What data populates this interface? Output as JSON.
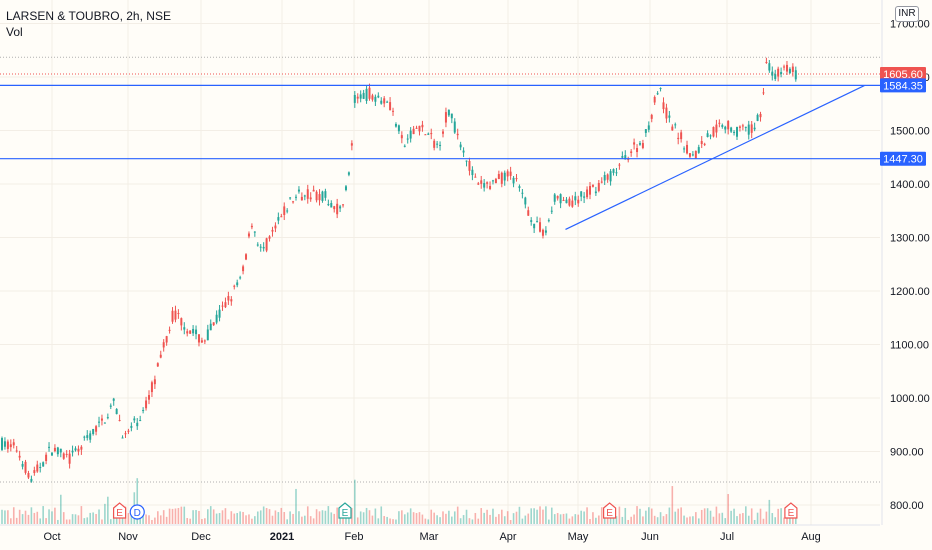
{
  "header": {
    "symbol_line": "LARSEN & TOUBRO, 2h, NSE",
    "indicator": "Vol"
  },
  "currency_badge": "INR",
  "colors": {
    "up": "#26a69a",
    "down": "#ef5350",
    "level_line": "#2962ff",
    "price_tag_red": "#ef5350",
    "price_tag_blue": "#2962ff",
    "background": "#fffdf8",
    "grid": "#f3eee6"
  },
  "chart_data": {
    "type": "candlestick",
    "y_axis": {
      "ticks": [
        800,
        900,
        1000,
        1100,
        1200,
        1300,
        1400,
        1500,
        1600,
        1700
      ],
      "tick_labels": [
        "800.00",
        "900.00",
        "1000.00",
        "1100.00",
        "1200.00",
        "1300.00",
        "1400.00",
        "1500.00",
        "1600.00",
        "1700.00"
      ],
      "ylim": [
        780,
        1725
      ]
    },
    "x_axis": {
      "tick_labels": [
        "Oct",
        "Nov",
        "Dec",
        "2021",
        "Feb",
        "Mar",
        "Apr",
        "May",
        "Jun",
        "Jul",
        "Aug"
      ]
    },
    "grid": true,
    "price_path": [
      {
        "t": 0,
        "p": 915
      },
      {
        "t": 1.5,
        "p": 905
      },
      {
        "t": 3,
        "p": 848
      },
      {
        "t": 5,
        "p": 905
      },
      {
        "t": 7,
        "p": 885
      },
      {
        "t": 8.5,
        "p": 920
      },
      {
        "t": 10,
        "p": 950
      },
      {
        "t": 11.5,
        "p": 990
      },
      {
        "t": 12.5,
        "p": 925
      },
      {
        "t": 14.5,
        "p": 975
      },
      {
        "t": 16,
        "p": 1060
      },
      {
        "t": 17.5,
        "p": 1160
      },
      {
        "t": 19,
        "p": 1130
      },
      {
        "t": 20.5,
        "p": 1105
      },
      {
        "t": 22.5,
        "p": 1165
      },
      {
        "t": 24.5,
        "p": 1225
      },
      {
        "t": 25.5,
        "p": 1330
      },
      {
        "t": 26.5,
        "p": 1270
      },
      {
        "t": 28,
        "p": 1320
      },
      {
        "t": 29.5,
        "p": 1370
      },
      {
        "t": 31,
        "p": 1385
      },
      {
        "t": 33,
        "p": 1375
      },
      {
        "t": 34.5,
        "p": 1350
      },
      {
        "t": 35.5,
        "p": 1420
      },
      {
        "t": 36,
        "p": 1555
      },
      {
        "t": 37.5,
        "p": 1570
      },
      {
        "t": 39.5,
        "p": 1555
      },
      {
        "t": 41,
        "p": 1470
      },
      {
        "t": 42.5,
        "p": 1510
      },
      {
        "t": 44.5,
        "p": 1470
      },
      {
        "t": 45.5,
        "p": 1540
      },
      {
        "t": 47,
        "p": 1470
      },
      {
        "t": 48.5,
        "p": 1395
      },
      {
        "t": 50,
        "p": 1400
      },
      {
        "t": 52,
        "p": 1420
      },
      {
        "t": 53,
        "p": 1380
      },
      {
        "t": 54.5,
        "p": 1320
      },
      {
        "t": 55.5,
        "p": 1312
      },
      {
        "t": 56.5,
        "p": 1380
      },
      {
        "t": 58,
        "p": 1360
      },
      {
        "t": 59.5,
        "p": 1380
      },
      {
        "t": 61,
        "p": 1400
      },
      {
        "t": 62.5,
        "p": 1420
      },
      {
        "t": 64,
        "p": 1460
      },
      {
        "t": 65.5,
        "p": 1480
      },
      {
        "t": 67,
        "p": 1580
      },
      {
        "t": 68,
        "p": 1520
      },
      {
        "t": 69.5,
        "p": 1480
      },
      {
        "t": 70.5,
        "p": 1450
      },
      {
        "t": 72,
        "p": 1490
      },
      {
        "t": 73.5,
        "p": 1515
      },
      {
        "t": 75,
        "p": 1500
      },
      {
        "t": 76.5,
        "p": 1500
      },
      {
        "t": 77.5,
        "p": 1540
      },
      {
        "t": 78,
        "p": 1625
      },
      {
        "t": 79,
        "p": 1600
      },
      {
        "t": 80,
        "p": 1620
      },
      {
        "t": 81,
        "p": 1605
      }
    ],
    "horizontal_levels": [
      1584.35,
      1447.3
    ],
    "trendline": {
      "start": {
        "t": 57.5,
        "p": 1315
      },
      "end": {
        "t": 88,
        "p": 1584
      }
    },
    "last_price": 1605.6,
    "price_tags": [
      "1605.60",
      "1584.35",
      "1447.30"
    ],
    "recent_high": 1637,
    "events": [
      {
        "t": 12,
        "label": "E",
        "kind": "earnings"
      },
      {
        "t": 13.8,
        "label": "D",
        "kind": "dividend"
      },
      {
        "t": 35,
        "label": "E",
        "kind": "earnings"
      },
      {
        "t": 62,
        "label": "E",
        "kind": "earnings"
      },
      {
        "t": 80.5,
        "label": "E",
        "kind": "earnings"
      }
    ]
  }
}
